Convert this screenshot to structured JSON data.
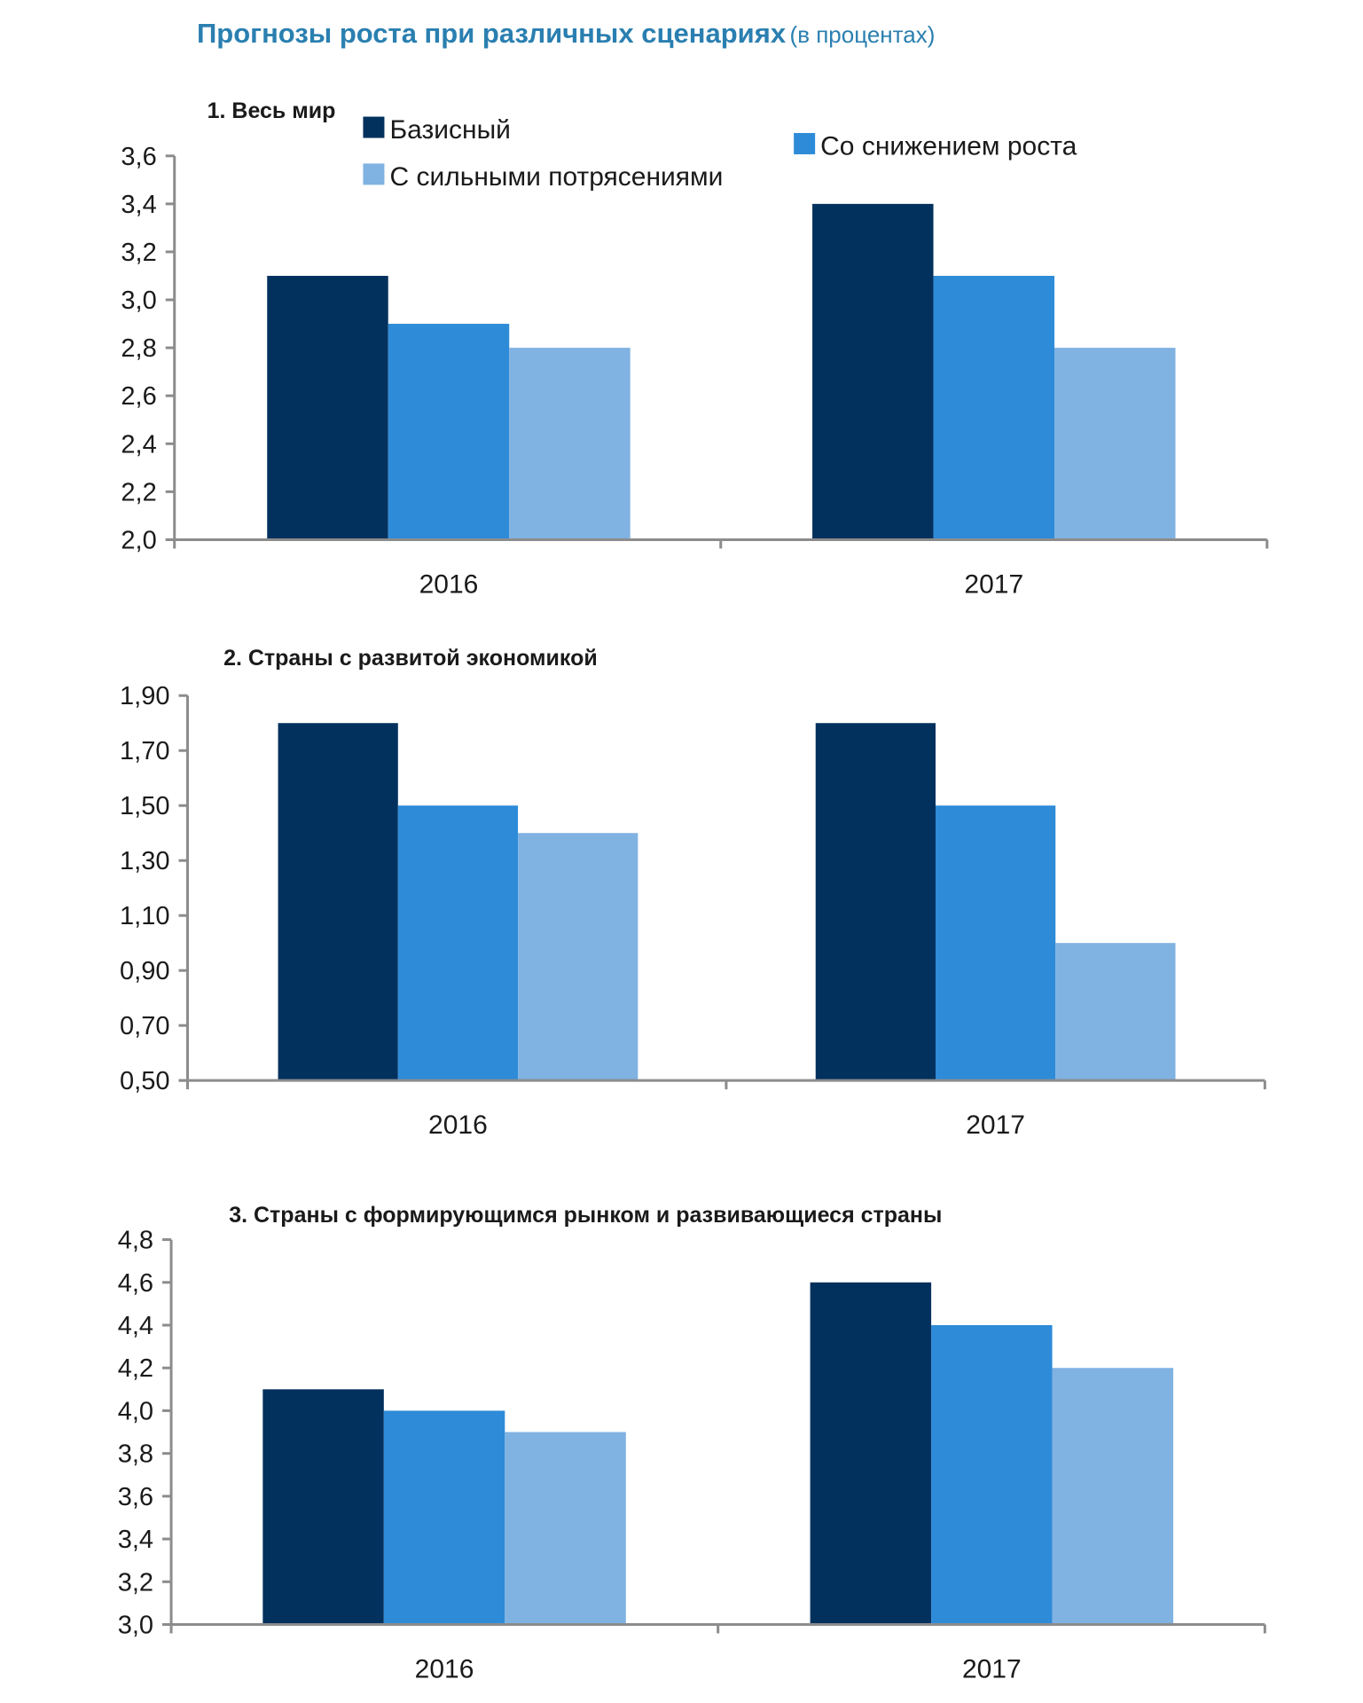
{
  "title": {
    "main": "Прогнозы роста при различных сценариях",
    "sub": "(в процентах)"
  },
  "legend": [
    {
      "name": "Базисный",
      "color": "#03315e"
    },
    {
      "name": "Со снижением роста",
      "color": "#2e8bd8"
    },
    {
      "name": "С сильными потрясениями",
      "color": "#80b2e2"
    }
  ],
  "chart_data": [
    {
      "type": "bar",
      "title": "1. Весь мир",
      "categories": [
        "2016",
        "2017"
      ],
      "series": [
        {
          "name": "Базисный",
          "values": [
            3.1,
            3.4
          ]
        },
        {
          "name": "Со снижением роста",
          "values": [
            2.9,
            3.1
          ]
        },
        {
          "name": "С сильными потрясениями",
          "values": [
            2.8,
            2.8
          ]
        }
      ],
      "ylim": [
        2.0,
        3.6
      ],
      "yticks": [
        "2,0",
        "2,2",
        "2,4",
        "2,6",
        "2,8",
        "3,0",
        "3,2",
        "3,4",
        "3,6"
      ],
      "xlabel": "",
      "ylabel": "",
      "grid": false,
      "legend_position": "top"
    },
    {
      "type": "bar",
      "title": "2. Страны с развитой экономикой",
      "categories": [
        "2016",
        "2017"
      ],
      "series": [
        {
          "name": "Базисный",
          "values": [
            1.8,
            1.8
          ]
        },
        {
          "name": "Со снижением роста",
          "values": [
            1.5,
            1.5
          ]
        },
        {
          "name": "С сильными потрясениями",
          "values": [
            1.4,
            1.0
          ]
        }
      ],
      "ylim": [
        0.5,
        1.9
      ],
      "yticks": [
        "0,50",
        "0,70",
        "0,90",
        "1,10",
        "1,30",
        "1,50",
        "1,70",
        "1,90"
      ],
      "xlabel": "",
      "ylabel": "",
      "grid": false
    },
    {
      "type": "bar",
      "title": "3.  Страны с формирующимся рынком и развивающиеся страны",
      "categories": [
        "2016",
        "2017"
      ],
      "series": [
        {
          "name": "Базисный",
          "values": [
            4.1,
            4.6
          ]
        },
        {
          "name": "Со снижением роста",
          "values": [
            4.0,
            4.4
          ]
        },
        {
          "name": "С сильными потрясениями",
          "values": [
            3.9,
            4.2
          ]
        }
      ],
      "ylim": [
        3.0,
        4.8
      ],
      "yticks": [
        "3,0",
        "3,2",
        "3,4",
        "3,6",
        "3,8",
        "4,0",
        "4,2",
        "4,4",
        "4,6",
        "4,8"
      ],
      "xlabel": "",
      "ylabel": "",
      "grid": false
    }
  ]
}
